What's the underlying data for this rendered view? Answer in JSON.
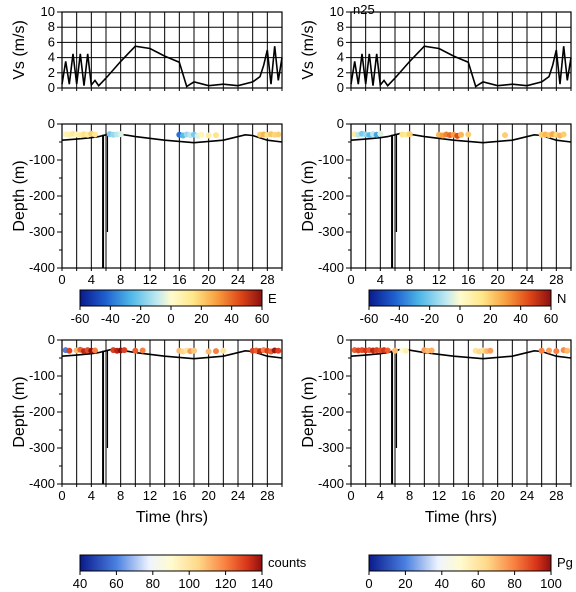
{
  "chart_data": [
    {
      "id": "vs-left",
      "type": "line",
      "ylabel": "Vs (m/s)",
      "ylim": [
        0,
        10
      ],
      "yticks": [
        "0",
        "2",
        "4",
        "6",
        "8",
        "10"
      ],
      "xlim": [
        0,
        30
      ],
      "x": [
        0,
        0.5,
        1,
        1.5,
        2,
        2.5,
        3,
        3.5,
        4,
        4.5,
        5,
        5.5,
        6,
        8,
        10,
        12,
        14,
        16,
        17,
        17.5,
        18,
        20,
        22,
        24,
        26,
        27,
        27.5,
        28,
        28.5,
        29,
        29.5,
        30
      ],
      "y": [
        0.5,
        3.5,
        0.5,
        4.5,
        0.5,
        4.5,
        0.3,
        4.5,
        0.4,
        1,
        0.3,
        0.8,
        1.3,
        3.5,
        5.5,
        5.2,
        4.2,
        3.4,
        0.2,
        0.5,
        0.8,
        0.3,
        0.5,
        0.3,
        0.8,
        1.5,
        3,
        5,
        0.5,
        5.5,
        1,
        4
      ]
    },
    {
      "id": "vs-right",
      "type": "line",
      "title": "n25",
      "ylabel": "Vs (m/s)",
      "ylim": [
        0,
        10
      ],
      "yticks": [
        "0",
        "2",
        "4",
        "6",
        "8",
        "10"
      ],
      "xlim": [
        0,
        30
      ],
      "x": [
        0,
        0.5,
        1,
        1.5,
        2,
        2.5,
        3,
        3.5,
        4,
        4.5,
        5,
        5.5,
        6,
        8,
        10,
        12,
        14,
        16,
        17,
        17.5,
        18,
        20,
        22,
        24,
        26,
        27,
        27.5,
        28,
        28.5,
        29,
        29.5,
        30
      ],
      "y": [
        0.5,
        3.5,
        0.5,
        4.5,
        0.5,
        4.5,
        0.3,
        4.5,
        0.4,
        1,
        0.3,
        0.8,
        1.3,
        3.5,
        5.5,
        5.2,
        4.2,
        3.4,
        0.2,
        0.5,
        0.8,
        0.3,
        0.5,
        0.3,
        0.8,
        1.5,
        3,
        5,
        0.5,
        5.5,
        1,
        4
      ]
    },
    {
      "id": "depth-e",
      "type": "scatter",
      "ylabel": "Depth (m)",
      "ylim": [
        -400,
        0
      ],
      "yticks": [
        "0",
        "-100",
        "-200",
        "-300",
        "-400"
      ],
      "xlim": [
        0,
        30
      ],
      "xticks": [
        "0",
        "4",
        "8",
        "12",
        "16",
        "20",
        "24",
        "28"
      ],
      "xlabel": "",
      "color_variable": "E",
      "colorbar_ticks": [
        "-60",
        "-40",
        "-20",
        "0",
        "20",
        "40",
        "60"
      ],
      "points": [
        [
          0.5,
          -28,
          5
        ],
        [
          1,
          -30,
          8
        ],
        [
          1.5,
          -27,
          12
        ],
        [
          2,
          -29,
          6
        ],
        [
          2.5,
          -31,
          10
        ],
        [
          3,
          -28,
          15
        ],
        [
          3.5,
          -30,
          9
        ],
        [
          4,
          -27,
          20
        ],
        [
          4.5,
          -29,
          12
        ],
        [
          6.5,
          -28,
          -20
        ],
        [
          7,
          -30,
          -15
        ],
        [
          7.5,
          -29,
          -10
        ],
        [
          8,
          -28,
          -5
        ],
        [
          16,
          -30,
          -40
        ],
        [
          16.5,
          -32,
          -25
        ],
        [
          17,
          -29,
          -15
        ],
        [
          17.5,
          -31,
          -10
        ],
        [
          18,
          -30,
          -20
        ],
        [
          18.5,
          -33,
          -5
        ],
        [
          19,
          -30,
          5
        ],
        [
          20,
          -32,
          10
        ],
        [
          21,
          -31,
          15
        ],
        [
          27,
          -30,
          20
        ],
        [
          27.5,
          -29,
          25
        ],
        [
          28,
          -31,
          15
        ],
        [
          28.5,
          -28,
          22
        ],
        [
          29,
          -30,
          18
        ],
        [
          29.5,
          -29,
          20
        ]
      ]
    },
    {
      "id": "depth-n",
      "type": "scatter",
      "ylabel": "Depth (m)",
      "ylim": [
        -400,
        0
      ],
      "yticks": [
        "0",
        "-100",
        "-200",
        "-300",
        "-400"
      ],
      "xlim": [
        0,
        30
      ],
      "xticks": [
        "0",
        "4",
        "8",
        "12",
        "16",
        "20",
        "24",
        "28"
      ],
      "xlabel": "",
      "color_variable": "N",
      "colorbar_ticks": [
        "-60",
        "-40",
        "-20",
        "0",
        "20",
        "40",
        "60"
      ],
      "points": [
        [
          0.5,
          -28,
          10
        ],
        [
          1,
          -30,
          -10
        ],
        [
          1.5,
          -27,
          -20
        ],
        [
          2,
          -29,
          -15
        ],
        [
          2.5,
          -31,
          -25
        ],
        [
          3,
          -28,
          -10
        ],
        [
          3.5,
          -30,
          -30
        ],
        [
          4,
          -27,
          -5
        ],
        [
          7,
          -29,
          15
        ],
        [
          7.5,
          -30,
          12
        ],
        [
          8,
          -28,
          20
        ],
        [
          12,
          -30,
          25
        ],
        [
          12.5,
          -32,
          30
        ],
        [
          13,
          -29,
          35
        ],
        [
          13.5,
          -31,
          40
        ],
        [
          14,
          -30,
          30
        ],
        [
          14.5,
          -33,
          45
        ],
        [
          15,
          -30,
          25
        ],
        [
          16,
          -29,
          20
        ],
        [
          21,
          -31,
          20
        ],
        [
          26,
          -30,
          20
        ],
        [
          26.5,
          -29,
          25
        ],
        [
          27,
          -31,
          22
        ],
        [
          27.5,
          -28,
          28
        ],
        [
          28,
          -30,
          18
        ],
        [
          28.5,
          -32,
          25
        ],
        [
          29,
          -29,
          20
        ]
      ]
    },
    {
      "id": "depth-counts",
      "type": "scatter",
      "ylabel": "Depth (m)",
      "xlabel": "Time (hrs)",
      "ylim": [
        -400,
        0
      ],
      "yticks": [
        "0",
        "-100",
        "-200",
        "-300",
        "-400"
      ],
      "xlim": [
        0,
        30
      ],
      "xticks": [
        "0",
        "4",
        "8",
        "12",
        "16",
        "20",
        "24",
        "28"
      ],
      "color_variable": "counts",
      "colorbar_ticks": [
        "40",
        "60",
        "80",
        "100",
        "120",
        "140"
      ],
      "points": [
        [
          0.5,
          -28,
          60
        ],
        [
          1,
          -30,
          130
        ],
        [
          2,
          -29,
          110
        ],
        [
          2.5,
          -27,
          125
        ],
        [
          3,
          -31,
          135
        ],
        [
          3.5,
          -28,
          128
        ],
        [
          4,
          -30,
          140
        ],
        [
          4.5,
          -29,
          120
        ],
        [
          7,
          -28,
          130
        ],
        [
          7.5,
          -30,
          135
        ],
        [
          8,
          -29,
          140
        ],
        [
          8.5,
          -28,
          130
        ],
        [
          10,
          -30,
          125
        ],
        [
          11,
          -29,
          120
        ],
        [
          16,
          -30,
          110
        ],
        [
          16.5,
          -32,
          105
        ],
        [
          17,
          -29,
          100
        ],
        [
          17.5,
          -31,
          115
        ],
        [
          18,
          -30,
          108
        ],
        [
          20,
          -32,
          110
        ],
        [
          21,
          -31,
          120
        ],
        [
          22,
          -30,
          100
        ],
        [
          26,
          -30,
          130
        ],
        [
          26.5,
          -29,
          125
        ],
        [
          27,
          -31,
          135
        ],
        [
          27.5,
          -28,
          120
        ],
        [
          28,
          -30,
          130
        ],
        [
          28.5,
          -32,
          125
        ],
        [
          29,
          -29,
          138
        ],
        [
          29.5,
          -30,
          130
        ]
      ]
    },
    {
      "id": "depth-pg",
      "type": "scatter",
      "ylabel": "Depth (m)",
      "xlabel": "Time (hrs)",
      "ylim": [
        -400,
        0
      ],
      "yticks": [
        "0",
        "-100",
        "-200",
        "-300",
        "-400"
      ],
      "xlim": [
        0,
        30
      ],
      "xticks": [
        "0",
        "4",
        "8",
        "12",
        "16",
        "20",
        "24",
        "28"
      ],
      "color_variable": "Pg",
      "colorbar_ticks": [
        "0",
        "20",
        "40",
        "60",
        "80",
        "100"
      ],
      "points": [
        [
          0.5,
          -28,
          85
        ],
        [
          1,
          -29,
          90
        ],
        [
          1.5,
          -28,
          88
        ],
        [
          2,
          -29,
          92
        ],
        [
          2.5,
          -28,
          86
        ],
        [
          3,
          -29,
          95
        ],
        [
          3.5,
          -28,
          90
        ],
        [
          4,
          -29,
          88
        ],
        [
          4.5,
          -28,
          92
        ],
        [
          5,
          -29,
          85
        ],
        [
          6,
          -30,
          70
        ],
        [
          7,
          -28,
          50
        ],
        [
          7.5,
          -30,
          55
        ],
        [
          10,
          -28,
          75
        ],
        [
          10.5,
          -30,
          70
        ],
        [
          11,
          -29,
          72
        ],
        [
          17,
          -30,
          60
        ],
        [
          17.5,
          -32,
          65
        ],
        [
          18,
          -29,
          62
        ],
        [
          18.5,
          -31,
          70
        ],
        [
          19,
          -30,
          75
        ],
        [
          26,
          -30,
          80
        ],
        [
          27,
          -29,
          75
        ],
        [
          28,
          -31,
          80
        ],
        [
          29,
          -28,
          78
        ],
        [
          29.5,
          -30,
          70
        ]
      ]
    }
  ]
}
